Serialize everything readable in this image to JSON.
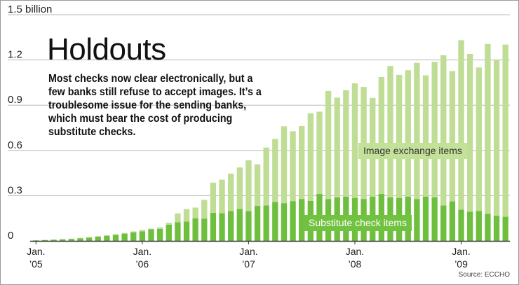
{
  "title": "Holdouts",
  "subtitle": "Most checks now clear electronically, but a few banks still refuse to accept images. It’s a troublesome issue for the sending banks, which must bear the cost of producing substitute checks.",
  "source": "Source: ECCHO",
  "colors": {
    "image_exchange": "#bfdd94",
    "substitute": "#6fbf3f",
    "axis": "#333333",
    "grid": "#b8b8b8"
  },
  "chart_data": {
    "type": "bar",
    "stacked": true,
    "ylim": [
      0,
      1.5
    ],
    "y_ticks": [
      {
        "value": 0,
        "label": "0"
      },
      {
        "value": 0.3,
        "label": "0.3"
      },
      {
        "value": 0.6,
        "label": "0.6"
      },
      {
        "value": 0.9,
        "label": "0.9"
      },
      {
        "value": 1.2,
        "label": "1.2"
      },
      {
        "value": 1.5,
        "label": "1.5 billion"
      }
    ],
    "x_ticks": [
      {
        "index": 0,
        "month": "Jan.",
        "year": "’05"
      },
      {
        "index": 12,
        "month": "Jan.",
        "year": "’06"
      },
      {
        "index": 24,
        "month": "Jan.",
        "year": "’07"
      },
      {
        "index": 36,
        "month": "Jan.",
        "year": "’08"
      },
      {
        "index": 48,
        "month": "Jan.",
        "year": "’09"
      }
    ],
    "x": [
      "2005-01",
      "2005-02",
      "2005-03",
      "2005-04",
      "2005-05",
      "2005-06",
      "2005-07",
      "2005-08",
      "2005-09",
      "2005-10",
      "2005-11",
      "2005-12",
      "2006-01",
      "2006-02",
      "2006-03",
      "2006-04",
      "2006-05",
      "2006-06",
      "2006-07",
      "2006-08",
      "2006-09",
      "2006-10",
      "2006-11",
      "2006-12",
      "2007-01",
      "2007-02",
      "2007-03",
      "2007-04",
      "2007-05",
      "2007-06",
      "2007-07",
      "2007-08",
      "2007-09",
      "2007-10",
      "2007-11",
      "2007-12",
      "2008-01",
      "2008-02",
      "2008-03",
      "2008-04",
      "2008-05",
      "2008-06",
      "2008-07",
      "2008-08",
      "2008-09",
      "2008-10",
      "2008-11",
      "2008-12",
      "2009-01",
      "2009-02",
      "2009-03",
      "2009-04",
      "2009-05",
      "2009-06"
    ],
    "series": [
      {
        "name": "Substitute check items",
        "values": [
          0.003,
          0.005,
          0.007,
          0.01,
          0.013,
          0.017,
          0.022,
          0.028,
          0.034,
          0.04,
          0.048,
          0.056,
          0.063,
          0.078,
          0.08,
          0.107,
          0.124,
          0.128,
          0.15,
          0.148,
          0.186,
          0.184,
          0.198,
          0.212,
          0.198,
          0.232,
          0.235,
          0.258,
          0.25,
          0.264,
          0.278,
          0.266,
          0.311,
          0.278,
          0.289,
          0.294,
          0.285,
          0.278,
          0.294,
          0.311,
          0.289,
          0.285,
          0.294,
          0.278,
          0.294,
          0.289,
          0.235,
          0.262,
          0.207,
          0.193,
          0.199,
          0.18,
          0.167,
          0.16
        ]
      },
      {
        "name": "Image exchange items",
        "values": [
          0.001,
          0.002,
          0.002,
          0.002,
          0.002,
          0.003,
          0.003,
          0.003,
          0.004,
          0.004,
          0.005,
          0.007,
          0.01,
          0.003,
          0.01,
          0.013,
          0.058,
          0.083,
          0.071,
          0.124,
          0.2,
          0.222,
          0.248,
          0.275,
          0.337,
          0.276,
          0.384,
          0.418,
          0.51,
          0.463,
          0.484,
          0.58,
          0.546,
          0.716,
          0.661,
          0.705,
          0.76,
          0.743,
          0.654,
          0.776,
          0.871,
          0.816,
          0.838,
          0.903,
          0.804,
          0.898,
          0.996,
          0.864,
          1.124,
          1.047,
          0.951,
          1.126,
          1.035,
          1.142
        ]
      }
    ]
  }
}
